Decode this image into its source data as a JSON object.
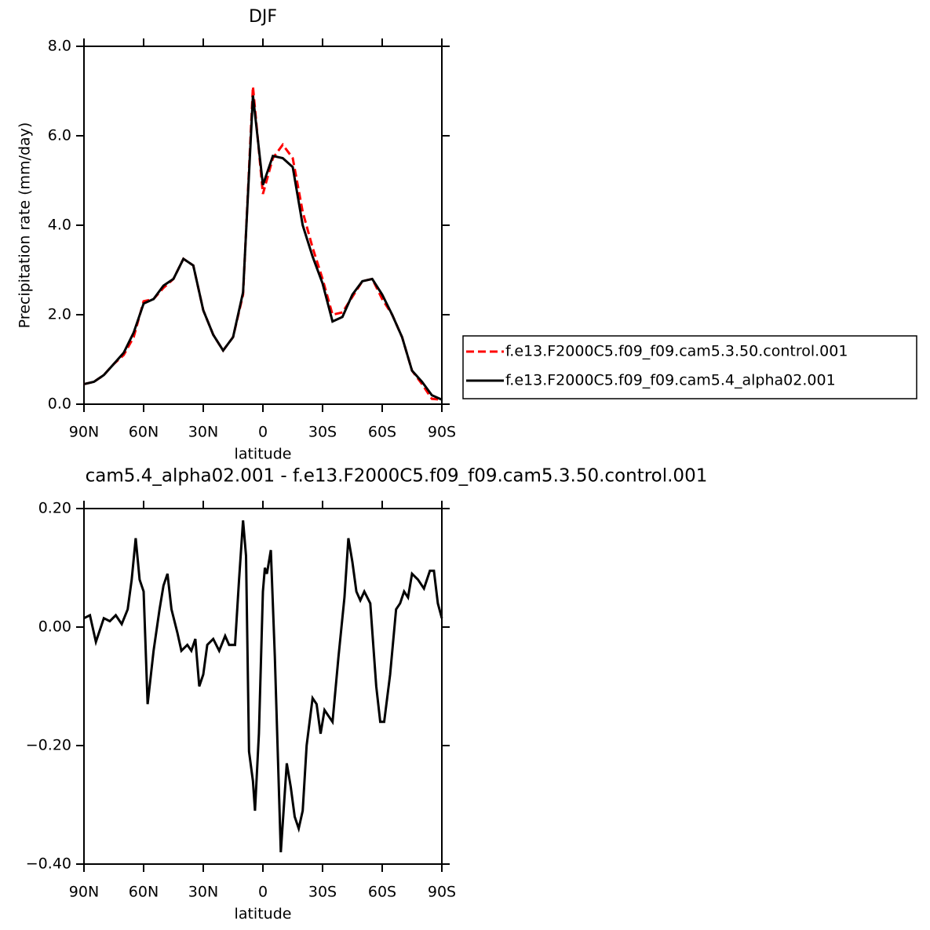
{
  "chart_data": [
    {
      "type": "line",
      "title": "DJF",
      "xlabel": "latitude",
      "ylabel": "Precipitation rate (mm/day)",
      "x": [
        90,
        85,
        80,
        75,
        70,
        65,
        60,
        55,
        50,
        45,
        40,
        35,
        30,
        25,
        20,
        15,
        10,
        5,
        0,
        -5,
        -10,
        -15,
        -20,
        -25,
        -30,
        -35,
        -40,
        -45,
        -50,
        -55,
        -60,
        -65,
        -70,
        -75,
        -80,
        -85,
        -90
      ],
      "series": [
        {
          "name": "f.e13.F2000C5.f09_f09.cam5.3.50.control.001",
          "color": "#ff0000",
          "dash": true,
          "values": [
            0.45,
            0.5,
            0.65,
            0.9,
            1.1,
            1.5,
            2.3,
            2.35,
            2.6,
            2.8,
            3.25,
            3.1,
            2.1,
            1.55,
            1.2,
            1.5,
            2.45,
            7.1,
            4.7,
            5.5,
            5.8,
            5.5,
            4.3,
            3.5,
            2.8,
            2.0,
            2.05,
            2.4,
            2.75,
            2.8,
            2.35,
            2.0,
            1.5,
            0.75,
            0.45,
            0.12,
            0.1
          ]
        },
        {
          "name": "f.e13.F2000C5.f09_f09.cam5.4_alpha02.001",
          "color": "#000000",
          "dash": false,
          "values": [
            0.45,
            0.5,
            0.65,
            0.9,
            1.15,
            1.6,
            2.25,
            2.35,
            2.65,
            2.8,
            3.25,
            3.1,
            2.1,
            1.55,
            1.2,
            1.5,
            2.5,
            6.9,
            4.9,
            5.55,
            5.5,
            5.3,
            4.0,
            3.3,
            2.7,
            1.85,
            1.95,
            2.45,
            2.75,
            2.8,
            2.45,
            2.0,
            1.5,
            0.75,
            0.5,
            0.2,
            0.1
          ]
        }
      ],
      "xlim": [
        90,
        -90
      ],
      "xticks": [
        {
          "value": 90,
          "label": "90N"
        },
        {
          "value": 60,
          "label": "60N"
        },
        {
          "value": 30,
          "label": "30N"
        },
        0,
        {
          "value": -30,
          "label": "30S"
        },
        {
          "value": -60,
          "label": "60S"
        },
        {
          "value": -90,
          "label": "90S"
        }
      ],
      "ylim": [
        0,
        8
      ],
      "yticks": [
        {
          "value": 0,
          "label": "0.0"
        },
        {
          "value": 2,
          "label": "2.0"
        },
        {
          "value": 4,
          "label": "4.0"
        },
        {
          "value": 6,
          "label": "6.0"
        },
        {
          "value": 8,
          "label": "8.0"
        }
      ],
      "legend": "right"
    },
    {
      "type": "line",
      "title": "cam5.4_alpha02.001 - f.e13.F2000C5.f09_f09.cam5.3.50.control.001",
      "xlabel": "latitude",
      "x": [
        90,
        87,
        84,
        80,
        77,
        74,
        71,
        68,
        66,
        64,
        62,
        60,
        58,
        55,
        52,
        50,
        48,
        46,
        43,
        41,
        38,
        36,
        34,
        32,
        30,
        28,
        25,
        22,
        19,
        17,
        14,
        12,
        10,
        8.5,
        7,
        5,
        4,
        2,
        0,
        -1,
        -2,
        -4,
        -6,
        -9,
        -12,
        -14,
        -16,
        -18,
        -20,
        -22,
        -25,
        -27,
        -29,
        -31,
        -33,
        -35,
        -38,
        -41,
        -43,
        -45,
        -47,
        -49,
        -51,
        -54,
        -57,
        -59,
        -61,
        -64,
        -67,
        -69,
        -71,
        -73,
        -75,
        -78,
        -81,
        -84,
        -86,
        -88,
        -90
      ],
      "series": [
        {
          "color": "#000000",
          "values": [
            0.015,
            0.02,
            -0.025,
            0.015,
            0.01,
            0.02,
            0.005,
            0.03,
            0.08,
            0.15,
            0.08,
            0.06,
            -0.13,
            -0.04,
            0.03,
            0.07,
            0.09,
            0.03,
            -0.01,
            -0.04,
            -0.03,
            -0.04,
            -0.02,
            -0.1,
            -0.08,
            -0.03,
            -0.02,
            -0.04,
            -0.015,
            -0.03,
            -0.03,
            0.08,
            0.18,
            0.12,
            -0.21,
            -0.26,
            -0.31,
            -0.18,
            0.06,
            0.1,
            0.09,
            0.13,
            -0.05,
            -0.38,
            -0.23,
            -0.27,
            -0.32,
            -0.34,
            -0.31,
            -0.2,
            -0.12,
            -0.13,
            -0.18,
            -0.14,
            -0.15,
            -0.16,
            -0.05,
            0.05,
            0.15,
            0.11,
            0.06,
            0.045,
            0.06,
            0.04,
            -0.1,
            -0.16,
            -0.16,
            -0.08,
            0.03,
            0.04,
            0.06,
            0.05,
            0.09,
            0.08,
            0.065,
            0.095,
            0.095,
            0.04,
            0.015
          ]
        }
      ],
      "xlim": [
        90,
        -90
      ],
      "xticks": [
        {
          "value": 90,
          "label": "90N"
        },
        {
          "value": 60,
          "label": "60N"
        },
        {
          "value": 30,
          "label": "30N"
        },
        0,
        {
          "value": -30,
          "label": "30S"
        },
        {
          "value": -60,
          "label": "60S"
        },
        {
          "value": -90,
          "label": "90S"
        }
      ],
      "ylim": [
        -0.4,
        0.2
      ],
      "yticks": [
        {
          "value": -0.4,
          "label": "−0.40"
        },
        {
          "value": -0.2,
          "label": "−0.20"
        },
        {
          "value": 0,
          "label": "0.00"
        },
        {
          "value": 0.2,
          "label": "0.20"
        }
      ]
    }
  ]
}
